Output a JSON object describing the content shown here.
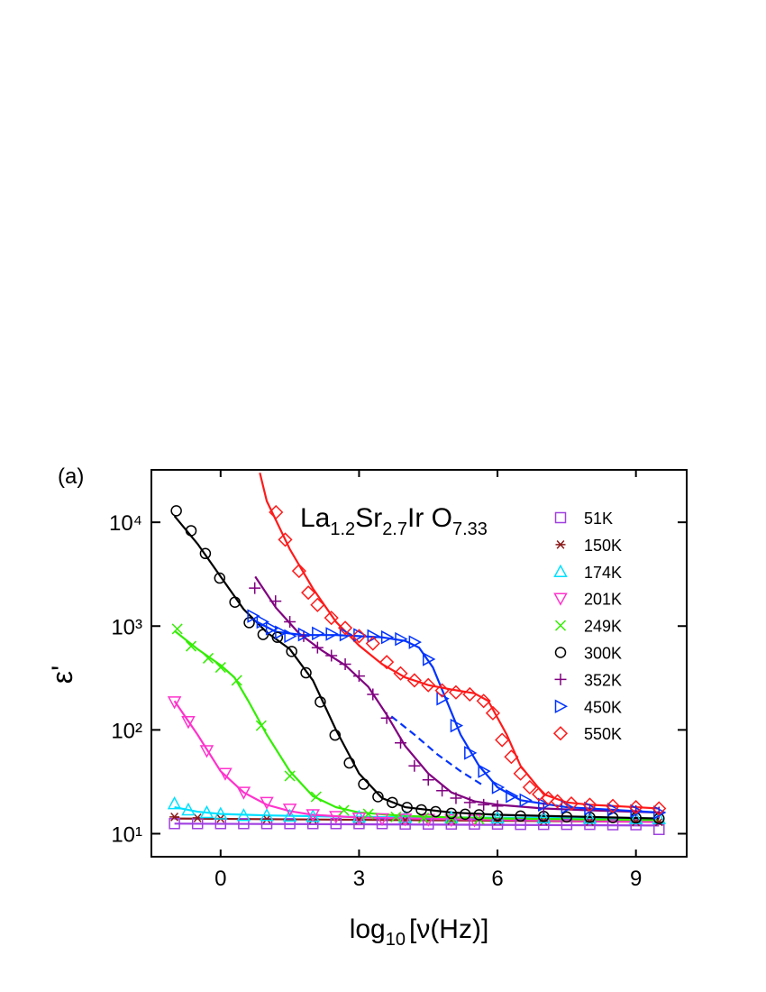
{
  "chart_data": {
    "type": "scatter",
    "panel_label": "(a)",
    "title_parts": [
      {
        "text": "La",
        "sub": "1.2"
      },
      {
        "text": "Sr",
        "sub": "2.7"
      },
      {
        "text": "Ir O",
        "sub": "7.33"
      }
    ],
    "x_label_parts": {
      "text": "log",
      "sub": "10",
      "rest": "[ν(Hz)]"
    },
    "y_label": "ε'",
    "log_y": true,
    "legend": "upper right",
    "xlim": [
      -1.5,
      10.1
    ],
    "xticks": [
      0,
      3,
      6,
      9
    ],
    "ylim": [
      6,
      32000
    ],
    "yticks": [
      {
        "value": 10,
        "label": "10¹"
      },
      {
        "value": 100,
        "label": "10²"
      },
      {
        "value": 1000,
        "label": "10³"
      },
      {
        "value": 10000,
        "label": "10⁴"
      }
    ],
    "series": [
      {
        "name": "51K",
        "color": "#a040e0",
        "marker": "square",
        "x": [
          -1,
          -0.5,
          0,
          0.5,
          1,
          1.5,
          2,
          2.5,
          3,
          3.5,
          4,
          4.5,
          5,
          5.5,
          6,
          6.5,
          7,
          7.5,
          8,
          8.5,
          9,
          9.5
        ],
        "values": [
          12.5,
          12.5,
          12.5,
          12.5,
          12.5,
          12.5,
          12.5,
          12.5,
          12.5,
          12.5,
          12.4,
          12.4,
          12.4,
          12.4,
          12.4,
          12.3,
          12.3,
          12.3,
          12.3,
          12.2,
          12.2,
          11
        ],
        "fit_x": [
          -1,
          9.5
        ],
        "fit_values": [
          12.5,
          12
        ]
      },
      {
        "name": "150K",
        "color": "#8b1a1a",
        "marker": "star",
        "x": [
          -1,
          -0.5,
          0,
          1,
          2,
          3,
          4,
          5,
          6,
          7,
          8,
          9,
          9.5
        ],
        "values": [
          14.5,
          14.2,
          14,
          13.8,
          13.7,
          13.6,
          13.5,
          13.4,
          13.3,
          13.2,
          13.1,
          13,
          13
        ],
        "fit_x": [
          -1,
          9.5
        ],
        "fit_values": [
          14,
          13
        ]
      },
      {
        "name": "174K",
        "color": "#00e0ff",
        "marker": "triangle-up",
        "x": [
          -1,
          -0.7,
          -0.3,
          0,
          0.5,
          1,
          1.5,
          2,
          3,
          4,
          5,
          6,
          7,
          8,
          9,
          9.5
        ],
        "values": [
          19.5,
          17,
          16,
          15.5,
          15,
          15,
          14.8,
          14.7,
          14.5,
          14.4,
          14.3,
          14.2,
          14.2,
          14.1,
          14,
          14
        ],
        "fit_x": [
          -1,
          -0.5,
          0,
          1,
          3,
          9.5
        ],
        "fit_values": [
          18,
          16.3,
          15.5,
          15,
          14.5,
          14
        ]
      },
      {
        "name": "201K",
        "color": "#ff33cc",
        "marker": "triangle-down",
        "x": [
          -1,
          -0.7,
          -0.3,
          0.1,
          0.5,
          1,
          1.5,
          2,
          2.5,
          3,
          3.5,
          4,
          4.5,
          5,
          5.5
        ],
        "values": [
          186,
          120,
          63,
          38,
          25,
          20,
          17.2,
          15.2,
          14.6,
          14.1,
          13.9,
          13.8,
          13.7,
          13.6,
          13.5
        ],
        "fit_x": [
          -1,
          -0.5,
          0,
          0.5,
          1,
          1.5,
          2,
          3,
          5,
          9.5
        ],
        "fit_values": [
          190,
          90,
          40,
          25,
          19,
          16.5,
          15.2,
          14.3,
          13.8,
          13
        ]
      },
      {
        "name": "249K",
        "color": "#33ee00",
        "marker": "x",
        "x": [
          -0.94,
          -0.64,
          -0.27,
          0,
          0.35,
          0.88,
          1.5,
          2.07,
          2.67,
          3.2,
          3.8,
          4.4,
          5,
          5.6
        ],
        "values": [
          940,
          640,
          490,
          400,
          300,
          110,
          36,
          22.7,
          16.8,
          15.5,
          14.5,
          14.2,
          14,
          13.8
        ],
        "fit_x": [
          -1,
          -0.5,
          0,
          0.3,
          0.6,
          1,
          1.5,
          2,
          2.5,
          3,
          4,
          6,
          9.5
        ],
        "fit_values": [
          900,
          600,
          420,
          320,
          190,
          90,
          40,
          23,
          18,
          16,
          14.8,
          14,
          13.5
        ]
      },
      {
        "name": "300K",
        "color": "#000000",
        "marker": "circle",
        "x": [
          -0.96,
          -0.64,
          -0.33,
          -0.02,
          0.31,
          0.62,
          0.92,
          1.23,
          1.54,
          1.85,
          2.16,
          2.48,
          2.79,
          3.1,
          3.41,
          3.72,
          4.04,
          4.35,
          4.66,
          5,
          5.3,
          5.6,
          6,
          6.5,
          7,
          7.5,
          8,
          8.5,
          9,
          9.5
        ],
        "values": [
          12900,
          8300,
          5000,
          2900,
          1700,
          1080,
          830,
          780,
          570,
          355,
          186,
          89,
          48,
          30,
          22.7,
          20,
          17.9,
          17,
          16.3,
          15.7,
          15.4,
          15.2,
          15,
          14.8,
          14.7,
          14.5,
          14.4,
          14.3,
          14.2,
          14
        ],
        "fit_x": [
          -1,
          -0.5,
          0,
          0.5,
          1,
          1.5,
          2,
          2.5,
          3,
          3.5,
          4,
          5,
          6,
          8,
          9.5
        ],
        "fit_values": [
          11500,
          6200,
          3000,
          1450,
          870,
          600,
          300,
          100,
          38,
          22,
          18,
          16,
          15.2,
          14.5,
          14
        ]
      },
      {
        "name": "352K",
        "color": "#800080",
        "marker": "plus",
        "x": [
          0.74,
          1.19,
          1.5,
          1.8,
          2.1,
          2.4,
          2.7,
          3,
          3.3,
          3.6,
          3.9,
          4.2,
          4.5,
          4.8,
          5.1,
          5.4,
          5.7,
          6,
          7,
          8,
          9,
          9.5
        ],
        "values": [
          2320,
          1740,
          1100,
          800,
          620,
          520,
          430,
          330,
          220,
          130,
          75,
          45,
          33,
          26,
          22,
          20,
          19,
          18.5,
          17.5,
          17,
          16.5,
          16
        ],
        "fit_x": [
          0.75,
          1.2,
          1.7,
          2.2,
          2.7,
          3.2,
          3.6,
          4,
          4.5,
          5,
          5.5,
          6,
          7,
          8,
          9.5
        ],
        "fit_values": [
          3000,
          1500,
          850,
          580,
          420,
          260,
          140,
          70,
          38,
          25,
          20.5,
          19,
          17.5,
          16.8,
          16
        ]
      },
      {
        "name": "450K",
        "color": "#0033ff",
        "marker": "triangle-right",
        "x": [
          0.7,
          0.9,
          1.1,
          1.3,
          1.5,
          1.8,
          2.1,
          2.4,
          2.7,
          3,
          3.3,
          3.6,
          3.9,
          4.2,
          4.5,
          4.8,
          5.1,
          5.4,
          5.7,
          6,
          6.3,
          6.6,
          7,
          7.5,
          8,
          8.5,
          9,
          9.5
        ],
        "values": [
          1250,
          1100,
          950,
          870,
          800,
          830,
          850,
          840,
          830,
          820,
          800,
          780,
          750,
          700,
          480,
          200,
          110,
          60,
          40,
          28,
          23,
          21,
          19,
          18,
          17.5,
          17,
          16.5,
          16
        ],
        "fit_x": [
          0.7,
          1.2,
          1.8,
          2.5,
          3,
          3.5,
          4,
          4.3,
          4.6,
          4.9,
          5.2,
          5.6,
          6,
          6.5,
          7.5,
          8.5,
          9.5
        ],
        "fit_values": [
          1150,
          880,
          820,
          820,
          800,
          780,
          720,
          620,
          400,
          190,
          90,
          45,
          28,
          21,
          18,
          17,
          16
        ],
        "dashed_x": [
          3.7,
          4.2,
          4.7,
          5.2,
          5.7
        ],
        "dashed_values": [
          135,
          90,
          58,
          40,
          29
        ]
      },
      {
        "name": "550K",
        "color": "#ff1a1a",
        "marker": "diamond",
        "x": [
          1.2,
          1.4,
          1.7,
          1.9,
          2.1,
          2.4,
          2.7,
          3,
          3.3,
          3.6,
          3.9,
          4.2,
          4.5,
          4.8,
          5.1,
          5.4,
          5.7,
          5.9,
          6.1,
          6.3,
          6.5,
          6.7,
          6.9,
          7.1,
          7.3,
          7.6,
          8,
          8.5,
          9,
          9.5
        ],
        "values": [
          12500,
          6800,
          3400,
          2100,
          1600,
          1200,
          960,
          800,
          680,
          450,
          350,
          300,
          270,
          240,
          230,
          220,
          190,
          145,
          80,
          55,
          38,
          28,
          24,
          22,
          20.5,
          19.5,
          19,
          18.5,
          18,
          17.5
        ],
        "fit_x": [
          0.85,
          1,
          1.5,
          2,
          2.5,
          3,
          3.5,
          4,
          4.5,
          5,
          5.5,
          5.8,
          6.2,
          6.5,
          7,
          7.5,
          8,
          9,
          9.5
        ],
        "fit_values": [
          30000,
          16000,
          5500,
          2300,
          1100,
          650,
          430,
          320,
          270,
          245,
          225,
          190,
          90,
          45,
          24,
          20,
          19,
          18,
          17.5
        ]
      }
    ]
  }
}
